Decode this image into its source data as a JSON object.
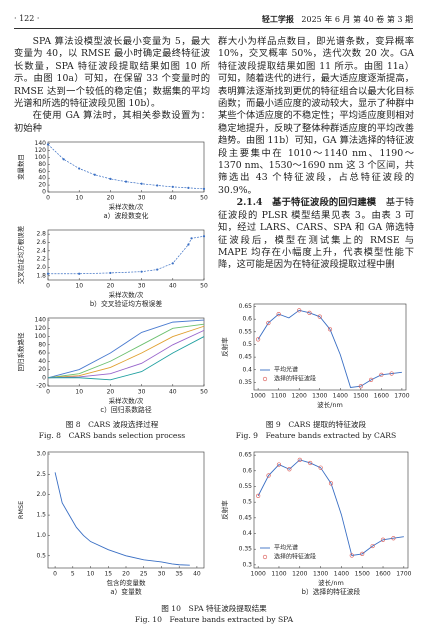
{
  "header": {
    "page": "· 122 ·",
    "journal": "轻工学报",
    "issue": "2025 年 6 月 第 40 卷 第 3 期"
  },
  "left_column": {
    "paragraphs": [
      "SPA 算法设模型波长最小变量为 5，最大变量为 40，以 RMSE 最小时确定最终特征波长数量，SPA 特征波段提取结果如图 10 所示。由图 10a）可知，在保留 33 个变量时的 RMSE 达到一个较低的稳定值；数据集的平均光谱和所选的特征波段见图 10b）。",
      "在使用 GA 算法时，其相关参数设置为：初始种"
    ]
  },
  "right_column": {
    "paragraphs": [
      "群大小为样品点数目，即光谱条数，变异概率 10%，交叉概率 50%，迭代次数 20 次。GA 特征波段提取结果如图 11 所示。由图 11a）可知，随着迭代的进行，最大适应度逐渐提高，表明算法逐渐找到更优的特征组合以最大化目标函数；而最小适应度的波动较大，显示了种群中某些个体适应度的不稳定性；平均适应度则相对稳定地提升，反映了整体种群适应度的平均改善趋势。由图 11b）可知，GA 算法选择的特征波段主要集中在 1010～1140 nm、1190～1370 nm、1530～1690 nm 这 3 个区间，共筛选出 43 个特征波段，占总特征波段的 30.9%。"
    ],
    "section": {
      "heading": "2.1.4　基于特征波段的回归建模",
      "text": "基于特征波段的 PLSR 模型结果见表 3。由表 3 可知，经过 LARS、CARS、SPA 和 GA 筛选特征波段后，模型在测试集上的 RMSE 与 MAPE 均存在小幅度上升，代表模型性能下降，这可能是因为在特征波段提取过程中删"
    }
  },
  "figures": {
    "fig8": {
      "caption_cn": "图 8　CARS 波段选择过程",
      "caption_en": "Fig. 8　CARS bands selection process"
    },
    "fig9": {
      "caption_cn": "图 9　CARS 提取的特征波段",
      "caption_en": "Fig. 9　Feature bands extracted by CARS"
    },
    "fig10": {
      "caption_cn": "图 10　SPA 特征波段提取结果",
      "caption_en": "Fig. 10　Feature bands extracted by SPA"
    }
  },
  "chart_data": [
    {
      "type": "line",
      "xlabel": "采样次数/次",
      "ylabel": "变量数目",
      "caption": "a）波段数变化",
      "xlim": [
        0,
        50
      ],
      "ylim": [
        0,
        145
      ],
      "xticks": [
        0,
        10,
        20,
        30,
        40,
        50
      ],
      "yticks": [
        0,
        20,
        40,
        60,
        80,
        100,
        120,
        140
      ],
      "series": [
        {
          "color": "#3a6fc4",
          "mode": "dashed-markers",
          "x": [
            0,
            5,
            10,
            15,
            20,
            25,
            30,
            35,
            40,
            45,
            50
          ],
          "values": [
            138,
            95,
            68,
            50,
            38,
            30,
            24,
            19,
            15,
            12,
            9
          ]
        }
      ]
    },
    {
      "type": "line",
      "xlabel": "采样次数/次",
      "ylabel": "交叉验证均方根误差",
      "caption": "b）交叉验证均方根误差",
      "xlim": [
        0,
        50
      ],
      "ylim": [
        1.7,
        2.9
      ],
      "xticks": [
        0,
        10,
        20,
        30,
        40,
        50
      ],
      "yticks": [
        1.8,
        {
          "value": 2,
          "label": "2.0"
        },
        2.2,
        2.4,
        2.6,
        2.8
      ],
      "series": [
        {
          "color": "#3a6fc4",
          "mode": "dashed-markers",
          "x": [
            0,
            10,
            20,
            30,
            35,
            40,
            45,
            46,
            50
          ],
          "values": [
            1.85,
            1.85,
            1.87,
            1.9,
            1.95,
            2.1,
            2.55,
            2.7,
            2.75
          ]
        }
      ]
    },
    {
      "type": "line",
      "xlabel": "采样次数/次",
      "ylabel": "回归系数路径",
      "caption": "c）回归系数路径",
      "xlim": [
        0,
        50
      ],
      "ylim": [
        -20,
        145
      ],
      "xticks": [
        0,
        10,
        20,
        30,
        40,
        50
      ],
      "yticks": [
        -20,
        0,
        20,
        40,
        60,
        80,
        100,
        120,
        140
      ],
      "series": [
        {
          "color": "#4a7bd0",
          "mode": "line",
          "x": [
            0,
            10,
            20,
            30,
            40,
            50
          ],
          "values": [
            0,
            20,
            60,
            110,
            135,
            140
          ]
        },
        {
          "color": "#6cc070",
          "mode": "line",
          "x": [
            0,
            10,
            20,
            30,
            40,
            50
          ],
          "values": [
            0,
            10,
            40,
            80,
            120,
            130
          ]
        },
        {
          "color": "#e0a030",
          "mode": "line",
          "x": [
            0,
            10,
            20,
            30,
            40,
            50
          ],
          "values": [
            0,
            5,
            25,
            60,
            100,
            125
          ]
        },
        {
          "color": "#9966cc",
          "mode": "line",
          "x": [
            0,
            10,
            20,
            30,
            40,
            50
          ],
          "values": [
            0,
            2,
            10,
            35,
            80,
            115
          ]
        },
        {
          "color": "#20a0a0",
          "mode": "line",
          "x": [
            0,
            10,
            20,
            30,
            40,
            50
          ],
          "values": [
            0,
            0,
            -5,
            15,
            60,
            100
          ]
        }
      ]
    },
    {
      "type": "line",
      "xlabel": "波长/nm",
      "ylabel": "反射率",
      "legend": "lower-left",
      "xlim": [
        980,
        1720
      ],
      "ylim": [
        0.32,
        0.66
      ],
      "xticks": [
        1000,
        1100,
        1200,
        1300,
        1400,
        1500,
        1600,
        1700
      ],
      "yticks": [
        0.35,
        0.4,
        0.45,
        0.5,
        0.55,
        0.6,
        0.65
      ],
      "series": [
        {
          "name": "平均光谱",
          "color": "#3a6fc4",
          "mode": "line",
          "x": [
            1000,
            1050,
            1100,
            1150,
            1200,
            1250,
            1300,
            1350,
            1400,
            1450,
            1500,
            1550,
            1600,
            1650,
            1700
          ],
          "values": [
            0.52,
            0.585,
            0.62,
            0.605,
            0.635,
            0.625,
            0.61,
            0.56,
            0.46,
            0.33,
            0.335,
            0.36,
            0.38,
            0.385,
            0.39
          ]
        },
        {
          "name": "选择的特征波段",
          "color": "#d9534f",
          "mode": "markers",
          "x": [
            1000,
            1050,
            1100,
            1200,
            1250,
            1300,
            1350,
            1500,
            1550,
            1600,
            1650
          ],
          "values": [
            0.52,
            0.585,
            0.62,
            0.635,
            0.625,
            0.61,
            0.56,
            0.335,
            0.36,
            0.38,
            0.385
          ]
        }
      ]
    },
    {
      "type": "line",
      "xlabel": "包含的变量数",
      "ylabel": "RMSE",
      "caption": "a）变量数",
      "xlim": [
        -2,
        42
      ],
      "ylim": [
        0.2,
        3.05
      ],
      "xticks": [
        0,
        5,
        10,
        15,
        20,
        25,
        30,
        35,
        40
      ],
      "yticks": [
        0.5,
        {
          "value": 1,
          "label": "1.0"
        },
        1.5,
        {
          "value": 2,
          "label": "2.0"
        },
        2.5,
        {
          "value": 3,
          "label": "3.0"
        }
      ],
      "series": [
        {
          "color": "#3a6fc4",
          "mode": "line",
          "x": [
            0,
            2,
            4,
            6,
            8,
            10,
            15,
            20,
            25,
            30,
            33,
            35,
            38
          ],
          "values": [
            2.55,
            1.8,
            1.5,
            1.2,
            1.0,
            0.85,
            0.65,
            0.5,
            0.4,
            0.35,
            0.3,
            0.28,
            0.27
          ]
        }
      ]
    },
    {
      "type": "line",
      "xlabel": "波长/nm",
      "ylabel": "反射率",
      "caption": "b）选择的特征波段",
      "legend": "lower-left",
      "xlim": [
        980,
        1720
      ],
      "ylim": [
        0.29,
        0.66
      ],
      "xticks": [
        1000,
        1100,
        1200,
        1300,
        1400,
        1500,
        1600,
        1700
      ],
      "yticks": [
        0.3,
        0.35,
        0.4,
        0.45,
        0.5,
        0.55,
        0.6,
        0.65
      ],
      "series": [
        {
          "name": "平均光谱",
          "color": "#3a6fc4",
          "mode": "line",
          "x": [
            1000,
            1050,
            1100,
            1150,
            1200,
            1250,
            1300,
            1350,
            1400,
            1450,
            1500,
            1550,
            1600,
            1650,
            1700
          ],
          "values": [
            0.52,
            0.585,
            0.62,
            0.605,
            0.635,
            0.625,
            0.61,
            0.56,
            0.46,
            0.33,
            0.335,
            0.36,
            0.38,
            0.385,
            0.39
          ]
        },
        {
          "name": "选择的特征波段",
          "color": "#d9534f",
          "mode": "markers",
          "x": [
            1000,
            1050,
            1100,
            1150,
            1200,
            1250,
            1300,
            1350,
            1450,
            1500,
            1550,
            1600,
            1650
          ],
          "values": [
            0.52,
            0.585,
            0.62,
            0.605,
            0.635,
            0.625,
            0.61,
            0.56,
            0.33,
            0.335,
            0.36,
            0.38,
            0.385
          ]
        }
      ]
    }
  ]
}
